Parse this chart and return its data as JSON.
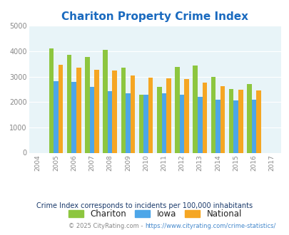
{
  "title": "Chariton Property Crime Index",
  "years": [
    2004,
    2005,
    2006,
    2007,
    2008,
    2009,
    2010,
    2011,
    2012,
    2013,
    2014,
    2015,
    2016,
    2017
  ],
  "chariton": [
    null,
    4100,
    3850,
    3780,
    4050,
    3350,
    2300,
    2600,
    3380,
    3430,
    3000,
    2520,
    2700,
    null
  ],
  "iowa": [
    null,
    2820,
    2780,
    2600,
    2430,
    2330,
    2280,
    2330,
    2300,
    2190,
    2090,
    2060,
    2100,
    null
  ],
  "national": [
    null,
    3460,
    3350,
    3260,
    3230,
    3050,
    2960,
    2940,
    2900,
    2750,
    2630,
    2490,
    2460,
    null
  ],
  "color_chariton": "#8dc63f",
  "color_iowa": "#4da6e8",
  "color_national": "#f5a623",
  "bg_color": "#e8f4f8",
  "ylim": [
    0,
    5000
  ],
  "yticks": [
    0,
    1000,
    2000,
    3000,
    4000,
    5000
  ],
  "footnote1": "Crime Index corresponds to incidents per 100,000 inhabitants",
  "footnote2_prefix": "© 2025 CityRating.com - ",
  "footnote2_url": "https://www.cityrating.com/crime-statistics/",
  "title_color": "#1a6abf",
  "footnote1_color": "#1a3a6b",
  "footnote2_prefix_color": "#888888",
  "footnote2_url_color": "#4488cc",
  "legend_text_color": "#222222",
  "tick_color": "#888888"
}
